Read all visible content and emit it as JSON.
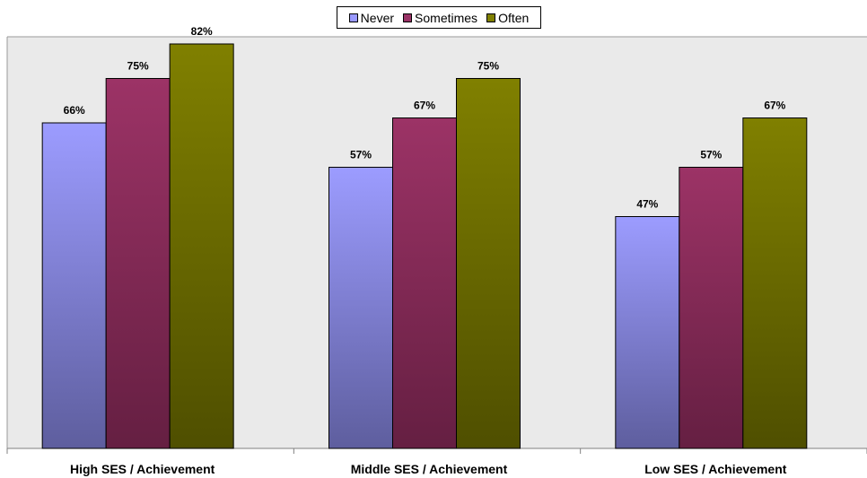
{
  "chart_data": {
    "type": "bar",
    "categories": [
      "High SES / Achievement",
      "Middle SES / Achievement",
      "Low SES / Achievement"
    ],
    "series": [
      {
        "name": "Never",
        "values": [
          66,
          57,
          47
        ],
        "labels": [
          "66%",
          "57%",
          "47%"
        ],
        "color_top": "#9c9cff",
        "color_bottom": "#5e5e9e"
      },
      {
        "name": "Sometimes",
        "values": [
          75,
          67,
          57
        ],
        "labels": [
          "75%",
          "67%",
          "57%"
        ],
        "color_top": "#9c3366",
        "color_bottom": "#651f42"
      },
      {
        "name": "Often",
        "values": [
          82,
          75,
          67
        ],
        "labels": [
          "82%",
          "75%",
          "67%"
        ],
        "color_top": "#808000",
        "color_bottom": "#4f4f00"
      }
    ],
    "ylim": [
      0,
      100
    ],
    "grid": false,
    "legend": "top-center",
    "plot_background": "#eaeaea"
  }
}
